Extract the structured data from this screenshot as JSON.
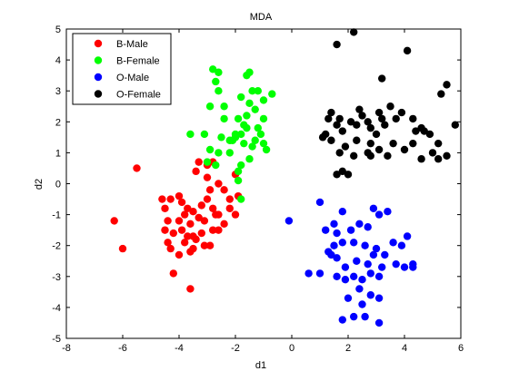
{
  "chart_data": {
    "type": "scatter",
    "title": "MDA",
    "xlabel": "d1",
    "ylabel": "d2",
    "xlim": [
      -8,
      6
    ],
    "ylim": [
      -5,
      5
    ],
    "xticks": [
      "-8",
      "-6",
      "-4",
      "-2",
      "0",
      "2",
      "4",
      "6"
    ],
    "yticks": [
      "-5",
      "-4",
      "-3",
      "-2",
      "-1",
      "0",
      "1",
      "2",
      "3",
      "4",
      "5"
    ],
    "grid": false,
    "legend_position": "top-left",
    "series": [
      {
        "name": "B-Male",
        "color": "#ff0000",
        "points": [
          [
            -5.5,
            0.5
          ],
          [
            -6.3,
            -1.2
          ],
          [
            -6.0,
            -2.1
          ],
          [
            -4.3,
            -0.5
          ],
          [
            -4.5,
            -0.8
          ],
          [
            -4.0,
            -0.4
          ],
          [
            -4.4,
            -1.2
          ],
          [
            -4.2,
            -1.6
          ],
          [
            -4.0,
            -1.2
          ],
          [
            -3.8,
            -1.0
          ],
          [
            -3.6,
            -1.3
          ],
          [
            -3.5,
            -0.9
          ],
          [
            -3.3,
            -1.1
          ],
          [
            -3.1,
            -1.2
          ],
          [
            -3.0,
            -0.5
          ],
          [
            -2.9,
            -0.2
          ],
          [
            -2.8,
            -0.8
          ],
          [
            -2.6,
            -1.0
          ],
          [
            -2.4,
            -1.3
          ],
          [
            -2.2,
            -0.8
          ],
          [
            -2.0,
            -1.0
          ],
          [
            -2.6,
            -1.5
          ],
          [
            -3.2,
            -1.6
          ],
          [
            -3.4,
            -1.8
          ],
          [
            -3.5,
            -2.1
          ],
          [
            -3.7,
            -1.7
          ],
          [
            -4.0,
            -2.3
          ],
          [
            -4.4,
            -1.9
          ],
          [
            -4.3,
            -2.1
          ],
          [
            -3.1,
            -2.0
          ],
          [
            -2.9,
            -2.0
          ],
          [
            -3.6,
            -2.2
          ],
          [
            -4.2,
            -2.9
          ],
          [
            -3.6,
            -3.4
          ],
          [
            -3.3,
            0.7
          ],
          [
            -3.0,
            0.6
          ],
          [
            -2.6,
            0.0
          ],
          [
            -2.4,
            -0.2
          ],
          [
            -2.2,
            -0.5
          ],
          [
            -1.9,
            -0.4
          ],
          [
            -3.7,
            -0.8
          ],
          [
            -3.9,
            -1.5
          ],
          [
            -3.2,
            -0.7
          ],
          [
            -2.8,
            -1.5
          ],
          [
            -3.9,
            -0.6
          ],
          [
            -2.0,
            0.3
          ],
          [
            -2.8,
            0.7
          ],
          [
            -3.5,
            -1.7
          ],
          [
            -4.5,
            -1.5
          ],
          [
            -3.4,
            0.4
          ],
          [
            -2.7,
            -1.0
          ],
          [
            -3.8,
            -1.9
          ],
          [
            -4.6,
            -0.5
          ],
          [
            -3.0,
            0.2
          ]
        ]
      },
      {
        "name": "B-Female",
        "color": "#00ff00",
        "points": [
          [
            -2.8,
            3.7
          ],
          [
            -2.6,
            3.6
          ],
          [
            -1.5,
            3.6
          ],
          [
            -2.7,
            3.3
          ],
          [
            -2.6,
            3.0
          ],
          [
            -1.6,
            3.5
          ],
          [
            -1.4,
            3.0
          ],
          [
            -1.2,
            3.0
          ],
          [
            -0.7,
            2.9
          ],
          [
            -1.0,
            2.7
          ],
          [
            -1.8,
            2.8
          ],
          [
            -1.5,
            2.6
          ],
          [
            -2.9,
            2.5
          ],
          [
            -2.4,
            2.1
          ],
          [
            -1.9,
            2.1
          ],
          [
            -1.6,
            2.2
          ],
          [
            -1.3,
            2.4
          ],
          [
            -1.0,
            2.1
          ],
          [
            -1.2,
            1.8
          ],
          [
            -1.6,
            1.8
          ],
          [
            -1.8,
            1.6
          ],
          [
            -2.0,
            1.5
          ],
          [
            -2.2,
            1.4
          ],
          [
            -2.5,
            1.5
          ],
          [
            -1.3,
            1.4
          ],
          [
            -1.0,
            1.3
          ],
          [
            -0.9,
            1.1
          ],
          [
            -1.4,
            1.2
          ],
          [
            -1.7,
            1.3
          ],
          [
            -2.6,
            1.0
          ],
          [
            -2.9,
            1.1
          ],
          [
            -3.1,
            1.6
          ],
          [
            -3.6,
            1.6
          ],
          [
            -2.2,
            1.0
          ],
          [
            -1.5,
            0.8
          ],
          [
            -1.8,
            0.6
          ],
          [
            -2.7,
            0.6
          ],
          [
            -3.0,
            0.7
          ],
          [
            -1.9,
            0.4
          ],
          [
            -1.9,
            0.1
          ],
          [
            -1.8,
            -0.5
          ],
          [
            -2.0,
            1.6
          ],
          [
            -1.7,
            1.9
          ],
          [
            -2.4,
            2.5
          ],
          [
            -2.1,
            1.4
          ],
          [
            -1.1,
            1.6
          ]
        ]
      },
      {
        "name": "O-Male",
        "color": "#0000ff",
        "points": [
          [
            -0.1,
            -1.2
          ],
          [
            1.0,
            -0.6
          ],
          [
            1.8,
            -0.9
          ],
          [
            1.5,
            -1.3
          ],
          [
            1.2,
            -1.5
          ],
          [
            1.6,
            -1.6
          ],
          [
            1.8,
            -1.9
          ],
          [
            2.1,
            -1.5
          ],
          [
            2.4,
            -1.3
          ],
          [
            2.7,
            -1.4
          ],
          [
            2.9,
            -0.8
          ],
          [
            3.1,
            -1.0
          ],
          [
            3.4,
            -0.9
          ],
          [
            2.2,
            -1.9
          ],
          [
            2.6,
            -2.0
          ],
          [
            2.9,
            -2.3
          ],
          [
            3.0,
            -2.1
          ],
          [
            3.6,
            -1.9
          ],
          [
            3.9,
            -2.0
          ],
          [
            4.1,
            -1.7
          ],
          [
            1.3,
            -2.2
          ],
          [
            1.6,
            -2.4
          ],
          [
            1.9,
            -2.7
          ],
          [
            2.3,
            -2.5
          ],
          [
            2.7,
            -2.6
          ],
          [
            3.2,
            -2.7
          ],
          [
            3.7,
            -2.6
          ],
          [
            4.3,
            -2.6
          ],
          [
            4.3,
            -2.7
          ],
          [
            1.6,
            -3.0
          ],
          [
            1.9,
            -3.1
          ],
          [
            2.2,
            -3.0
          ],
          [
            2.5,
            -3.1
          ],
          [
            2.8,
            -2.9
          ],
          [
            3.1,
            -3.0
          ],
          [
            1.0,
            -2.9
          ],
          [
            0.6,
            -2.9
          ],
          [
            2.4,
            -3.4
          ],
          [
            2.8,
            -3.6
          ],
          [
            2.0,
            -3.7
          ],
          [
            3.1,
            -3.7
          ],
          [
            2.5,
            -3.9
          ],
          [
            2.2,
            -4.3
          ],
          [
            1.8,
            -4.4
          ],
          [
            2.6,
            -4.3
          ],
          [
            3.1,
            -4.5
          ],
          [
            1.4,
            -2.3
          ],
          [
            1.5,
            -2.0
          ],
          [
            4.0,
            -2.7
          ],
          [
            3.3,
            -2.3
          ]
        ]
      },
      {
        "name": "O-Female",
        "color": "#000000",
        "points": [
          [
            1.6,
            4.5
          ],
          [
            2.2,
            4.9
          ],
          [
            4.1,
            4.3
          ],
          [
            3.2,
            3.4
          ],
          [
            5.5,
            3.2
          ],
          [
            5.3,
            2.9
          ],
          [
            2.4,
            2.4
          ],
          [
            2.5,
            2.2
          ],
          [
            3.1,
            2.3
          ],
          [
            3.5,
            2.5
          ],
          [
            3.9,
            2.3
          ],
          [
            3.7,
            2.1
          ],
          [
            4.3,
            2.1
          ],
          [
            1.4,
            2.3
          ],
          [
            1.7,
            2.1
          ],
          [
            1.3,
            2.1
          ],
          [
            1.6,
            1.9
          ],
          [
            2.1,
            2.0
          ],
          [
            2.3,
            1.9
          ],
          [
            2.7,
            2.0
          ],
          [
            3.2,
            2.1
          ],
          [
            3.3,
            1.9
          ],
          [
            4.6,
            1.8
          ],
          [
            5.8,
            1.9
          ],
          [
            2.8,
            1.8
          ],
          [
            3.0,
            1.6
          ],
          [
            4.4,
            1.7
          ],
          [
            4.7,
            1.7
          ],
          [
            4.9,
            1.6
          ],
          [
            1.2,
            1.6
          ],
          [
            1.8,
            1.7
          ],
          [
            1.1,
            1.5
          ],
          [
            1.9,
            1.2
          ],
          [
            2.3,
            1.4
          ],
          [
            2.8,
            1.3
          ],
          [
            3.6,
            1.3
          ],
          [
            1.7,
            1.0
          ],
          [
            2.7,
            1.0
          ],
          [
            3.1,
            1.1
          ],
          [
            3.4,
            0.9
          ],
          [
            4.0,
            1.1
          ],
          [
            4.6,
            0.8
          ],
          [
            5.2,
            0.8
          ],
          [
            5.5,
            0.9
          ],
          [
            1.8,
            0.4
          ],
          [
            2.0,
            0.3
          ],
          [
            1.6,
            0.3
          ],
          [
            2.8,
            0.9
          ],
          [
            2.2,
            0.9
          ],
          [
            1.4,
            1.4
          ],
          [
            4.3,
            1.3
          ],
          [
            5.2,
            1.3
          ],
          [
            5.0,
            1.0
          ]
        ]
      }
    ]
  }
}
